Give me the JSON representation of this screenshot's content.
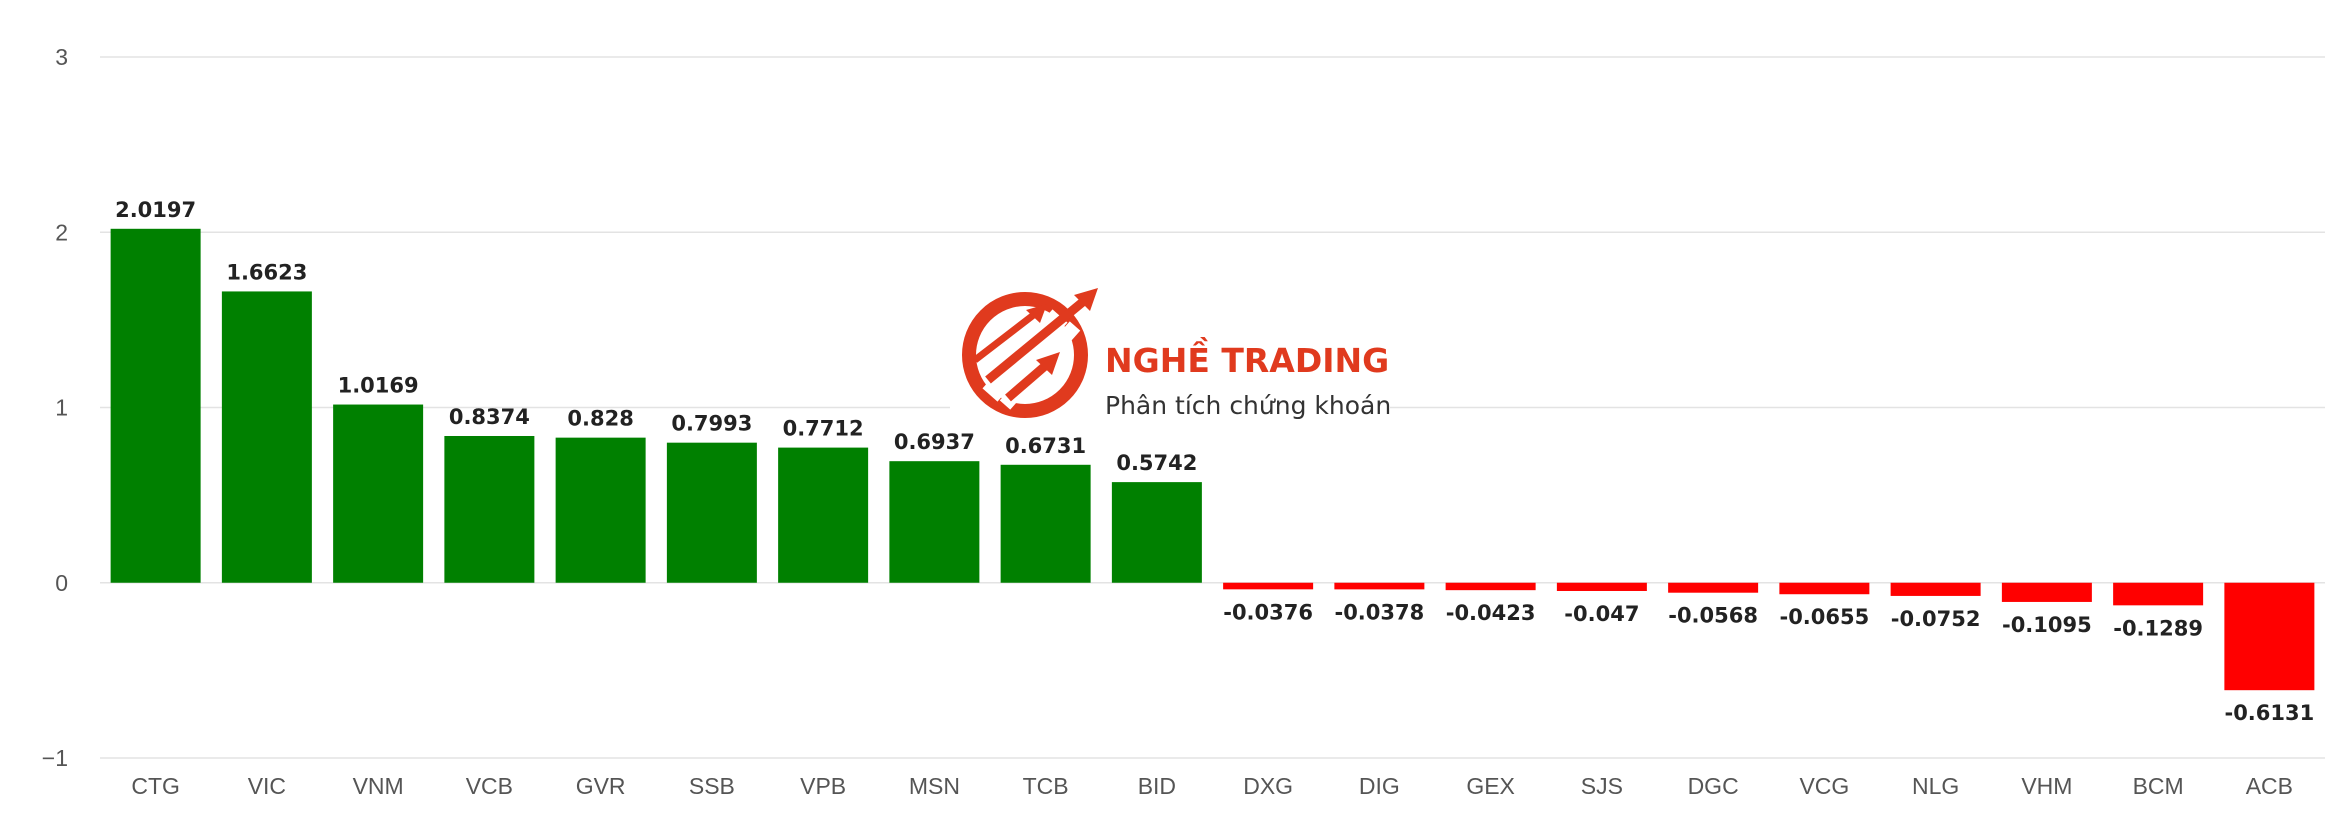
{
  "chart_data": {
    "type": "bar",
    "categories": [
      "CTG",
      "VIC",
      "VNM",
      "VCB",
      "GVR",
      "SSB",
      "VPB",
      "MSN",
      "TCB",
      "BID",
      "DXG",
      "DIG",
      "GEX",
      "SJS",
      "DGC",
      "VCG",
      "NLG",
      "VHM",
      "BCM",
      "ACB"
    ],
    "values": [
      2.0197,
      1.6623,
      1.0169,
      0.8374,
      0.828,
      0.7993,
      0.7712,
      0.6937,
      0.6731,
      0.5742,
      -0.0376,
      -0.0378,
      -0.0423,
      -0.047,
      -0.0568,
      -0.0655,
      -0.0752,
      -0.1095,
      -0.1289,
      -0.6131
    ],
    "value_labels": [
      "2.0197",
      "1.6623",
      "1.0169",
      "0.8374",
      "0.828",
      "0.7993",
      "0.7712",
      "0.6937",
      "0.6731",
      "0.5742",
      "-0.0376",
      "-0.0378",
      "-0.0423",
      "-0.047",
      "-0.0568",
      "-0.0655",
      "-0.0752",
      "-0.1095",
      "-0.1289",
      "-0.6131"
    ],
    "ylim": [
      -1,
      3
    ],
    "yticks": [
      3,
      2,
      1,
      0,
      -1
    ],
    "ytick_labels": [
      "3",
      "2",
      "1",
      "0",
      "−1"
    ],
    "grid": true,
    "colors": {
      "positive": "#008000",
      "negative": "#ff0000"
    },
    "title": "",
    "xlabel": "",
    "ylabel": ""
  },
  "watermark": {
    "title": "NGHỀ TRADING",
    "subtitle": "Phân tích chứng khoán",
    "color": "#e03a1e",
    "icon": "trading-arrows-logo"
  }
}
